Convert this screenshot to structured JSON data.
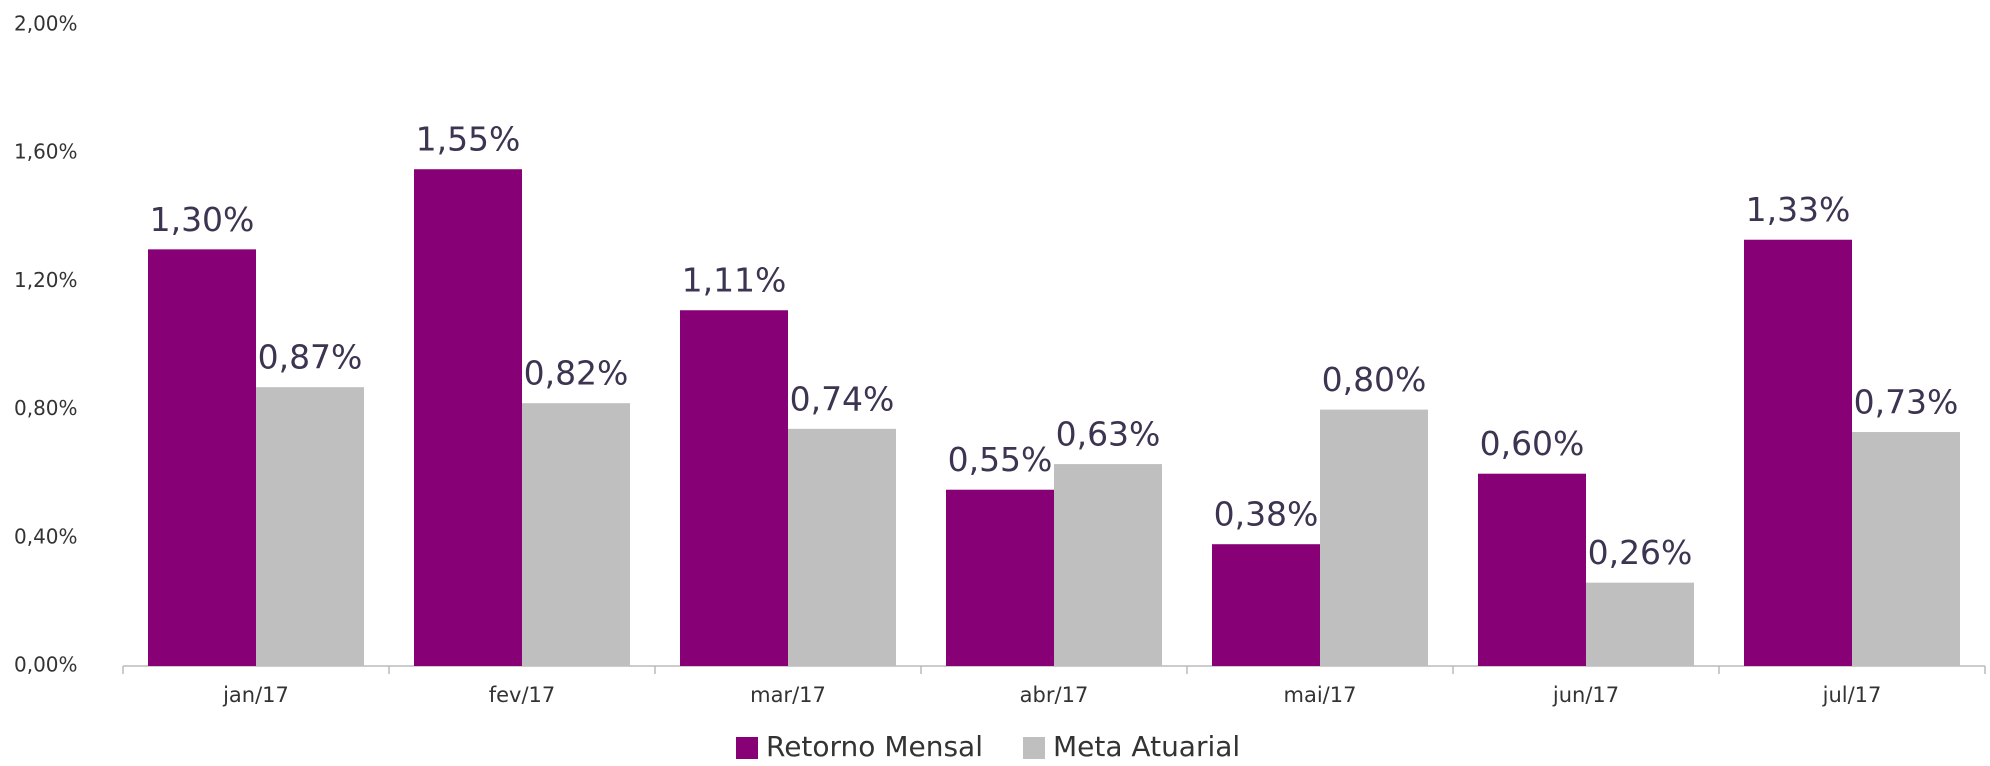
{
  "chart_data": {
    "type": "bar",
    "categories": [
      "jan/17",
      "fev/17",
      "mar/17",
      "abr/17",
      "mai/17",
      "jun/17",
      "jul/17"
    ],
    "series": [
      {
        "name": "Retorno Mensal",
        "color": "#870075",
        "values": [
          1.3,
          1.55,
          1.11,
          0.55,
          0.38,
          0.6,
          1.33
        ],
        "value_labels": [
          "1,30%",
          "1,55%",
          "1,11%",
          "0,55%",
          "0,38%",
          "0,60%",
          "1,33%"
        ]
      },
      {
        "name": "Meta Atuarial",
        "color": "#bfbfbf",
        "values": [
          0.87,
          0.82,
          0.74,
          0.63,
          0.8,
          0.26,
          0.73
        ],
        "value_labels": [
          "0,87%",
          "0,82%",
          "0,74%",
          "0,63%",
          "0,80%",
          "0,26%",
          "0,73%"
        ]
      }
    ],
    "ylim": [
      0,
      2.0
    ],
    "yticks": [
      {
        "value": 0,
        "label": "0,00%"
      },
      {
        "value": 0.4,
        "label": "0,40%"
      },
      {
        "value": 0.8,
        "label": "0,80%"
      },
      {
        "value": 1.2,
        "label": "1,20%"
      },
      {
        "value": 1.6,
        "label": "1,60%"
      },
      {
        "value": 2.0,
        "label": "2,00%"
      }
    ],
    "grid": false,
    "legend": "bottom"
  }
}
